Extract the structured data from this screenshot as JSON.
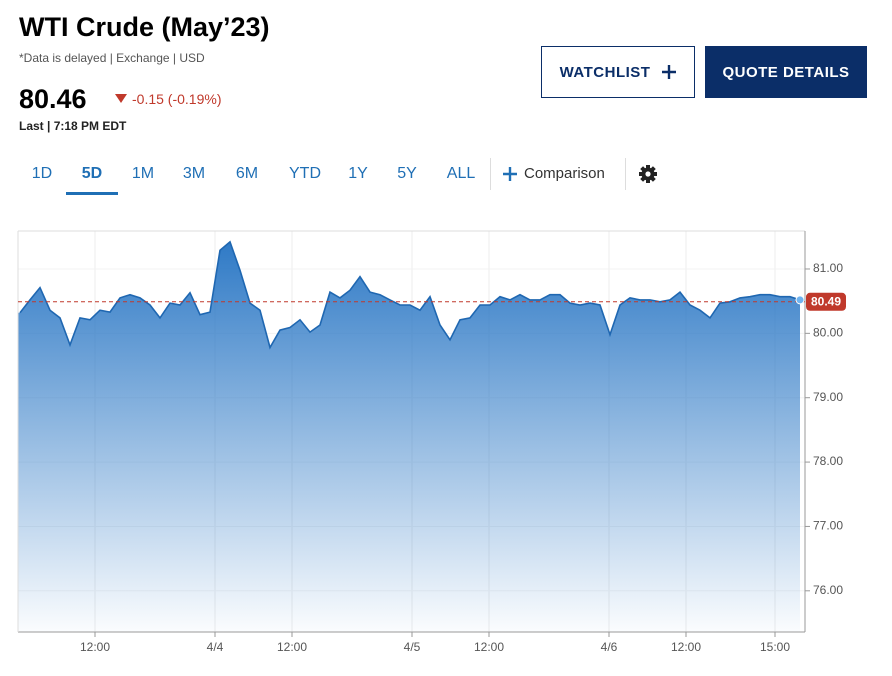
{
  "header": {
    "title": "WTI Crude (May’23)",
    "subtitle": "*Data is delayed | Exchange | USD",
    "price": "80.46",
    "change": "-0.15 (-0.19%)",
    "last": "Last | 7:18 PM EDT"
  },
  "buttons": [
    "WATCHLIST",
    "QUOTE DETAILS"
  ],
  "range_tabs": {
    "items": [
      "1D",
      "5D",
      "1M",
      "3M",
      "6M",
      "YTD",
      "1Y",
      "5Y",
      "ALL"
    ],
    "active": 1
  },
  "comparison": "Comparison",
  "chart_data": {
    "type": "area",
    "color": "#2f7ac6",
    "x": [
      0,
      1,
      2,
      3,
      4,
      5,
      6,
      7,
      8,
      9,
      10,
      11,
      12,
      13,
      14,
      15,
      16,
      17,
      18,
      19,
      20,
      21,
      22,
      23,
      24,
      25,
      26,
      27,
      28,
      29,
      30,
      31,
      32,
      33,
      34,
      35,
      36,
      37,
      38,
      39,
      40,
      41,
      42,
      43,
      44,
      45,
      46,
      47,
      48,
      49,
      50,
      51,
      52,
      53,
      54,
      55,
      56,
      57,
      58,
      59,
      60,
      61,
      62,
      63,
      64,
      65,
      66,
      67,
      68,
      69,
      70,
      71,
      72,
      73,
      74,
      75,
      76,
      77,
      78
    ],
    "values": [
      80.32,
      80.52,
      80.71,
      80.36,
      80.24,
      79.82,
      80.24,
      80.21,
      80.36,
      80.33,
      80.55,
      80.6,
      80.55,
      80.44,
      80.24,
      80.47,
      80.44,
      80.63,
      80.29,
      80.33,
      81.29,
      81.42,
      80.98,
      80.47,
      80.36,
      79.78,
      80.05,
      80.09,
      80.21,
      80.02,
      80.13,
      80.64,
      80.55,
      80.67,
      80.88,
      80.64,
      80.6,
      80.52,
      80.44,
      80.44,
      80.36,
      80.57,
      80.13,
      79.9,
      80.21,
      80.24,
      80.44,
      80.44,
      80.57,
      80.52,
      80.6,
      80.52,
      80.52,
      80.6,
      80.6,
      80.47,
      80.44,
      80.47,
      80.44,
      79.98,
      80.44,
      80.55,
      80.52,
      80.52,
      80.49,
      80.52,
      80.64,
      80.44,
      80.36,
      80.24,
      80.47,
      80.49,
      80.55,
      80.57,
      80.6,
      80.6,
      80.57,
      80.57,
      80.52
    ],
    "xlim": [
      -0.2,
      78.5
    ],
    "xticks": [
      {
        "value": 7.5,
        "label": "12:00"
      },
      {
        "value": 19.5,
        "label": "4/4"
      },
      {
        "value": 27.2,
        "label": "12:00"
      },
      {
        "value": 39.2,
        "label": "4/5"
      },
      {
        "value": 46.9,
        "label": "12:00"
      },
      {
        "value": 58.9,
        "label": "4/6"
      },
      {
        "value": 66.6,
        "label": "12:00"
      },
      {
        "value": 75.5,
        "label": "15:00"
      }
    ],
    "ylim": [
      75.36,
      81.59
    ],
    "yticks": [
      {
        "value": 76,
        "label": "76.00"
      },
      {
        "value": 77,
        "label": "77.00"
      },
      {
        "value": 78,
        "label": "78.00"
      },
      {
        "value": 79,
        "label": "79.00"
      },
      {
        "value": 80,
        "label": "80.00"
      },
      {
        "value": 81,
        "label": "81.00"
      }
    ],
    "reference_line": {
      "value": 80.49,
      "color": "#c0392b"
    },
    "grid": true
  }
}
